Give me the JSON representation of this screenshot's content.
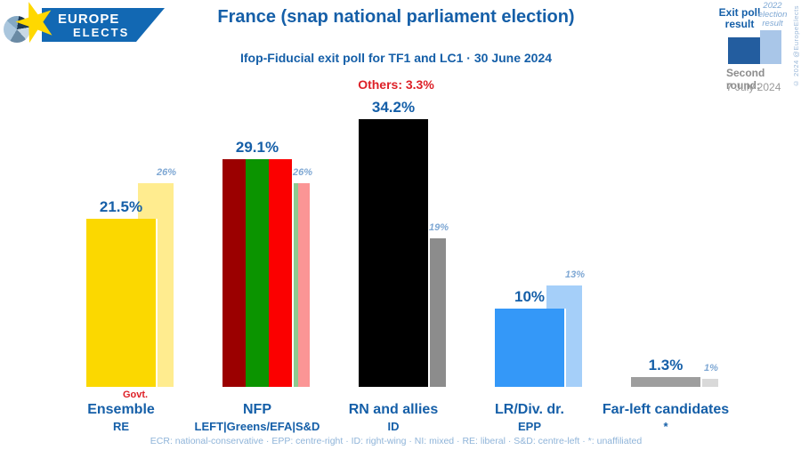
{
  "logo": {
    "line1": "EUROPE",
    "line2": "ELECTS"
  },
  "header": {
    "title": "France (snap national parliament election)",
    "subtitle": "Ifop-Fiducial exit poll for TF1 and LC1 · 30 June 2024",
    "others_label": "Others: 3.3%"
  },
  "legend": {
    "exit_poll_label": "Exit poll result",
    "previous_label": "2022 election result",
    "second_round_label": "Second round:",
    "second_round_date": "7 July 2024",
    "copyright": "© 2024 @EuropeElects",
    "exit_color": "#235d9f",
    "previous_color": "#a9c6e8"
  },
  "colors": {
    "title_blue": "#155fa8",
    "accent_red": "#dd1f26",
    "faded_blue": "#7fa8d4",
    "footnote_blue": "#8fb4d9",
    "gray_text": "#8c8c8c"
  },
  "footnote": "ECR: national-conservative · EPP: centre-right · ID: right-wing · NI: mixed · RE: liberal · S&D: centre-left · *: unaffiliated",
  "chart_data": {
    "type": "bar",
    "title": "France (snap national parliament election)",
    "subtitle": "Ifop-Fiducial exit poll for TF1 and LC1 · 30 June 2024",
    "unit": "%",
    "others_value": 3.3,
    "ylim": [
      0,
      38
    ],
    "grid": false,
    "legend_position": "top-right",
    "categories": [
      "Ensemble (RE)",
      "NFP (LEFT|Greens/EFA|S&D)",
      "RN and allies (ID)",
      "LR/Div. dr. (EPP)",
      "Far-left candidates (*)"
    ],
    "series": [
      {
        "name": "Exit poll result",
        "values": [
          21.5,
          29.1,
          34.2,
          10,
          1.3
        ]
      },
      {
        "name": "2022 election result",
        "values": [
          26,
          26,
          19,
          13,
          1
        ]
      }
    ],
    "groups": [
      {
        "party": "Ensemble",
        "bloc": "RE",
        "note": "Govt.",
        "exit_poll": 21.5,
        "exit_poll_label": "21.5%",
        "result_2022": 26,
        "result_2022_label": "26%",
        "bar_colors": [
          "#fbd800"
        ],
        "bar_2022_colors": [
          "#ffec8f"
        ],
        "dotted": false
      },
      {
        "party": "NFP",
        "bloc": "LEFT|Greens/EFA|S&D",
        "note": "",
        "exit_poll": 29.1,
        "exit_poll_label": "29.1%",
        "result_2022": 26,
        "result_2022_label": "26%",
        "bar_colors": [
          "#9b0000",
          "#0b9400",
          "#fb0000"
        ],
        "bar_2022_colors": [
          "#d49a9a",
          "#8fc98f",
          "#fb9595"
        ],
        "dotted": false
      },
      {
        "party": "RN and allies",
        "bloc": "ID",
        "note": "",
        "exit_poll": 34.2,
        "exit_poll_label": "34.2%",
        "result_2022": 19,
        "result_2022_label": "19%",
        "bar_colors": [
          "#000000"
        ],
        "bar_2022_colors": [
          "#8c8c8c"
        ],
        "dotted": false
      },
      {
        "party": "LR/Div. dr.",
        "bloc": "EPP",
        "note": "",
        "exit_poll": 10,
        "exit_poll_label": "10%",
        "result_2022": 13,
        "result_2022_label": "13%",
        "bar_colors": [
          "#3498f8"
        ],
        "bar_2022_colors": [
          "#a5cff9"
        ],
        "dotted": false
      },
      {
        "party": "Far-left candidates",
        "bloc": "*",
        "note": "",
        "exit_poll": 1.3,
        "exit_poll_label": "1.3%",
        "result_2022": 1,
        "result_2022_label": "1%",
        "bar_colors": [
          "#9e9e9e"
        ],
        "bar_2022_colors": [
          "#d9d9d9"
        ],
        "dotted": true
      }
    ]
  }
}
